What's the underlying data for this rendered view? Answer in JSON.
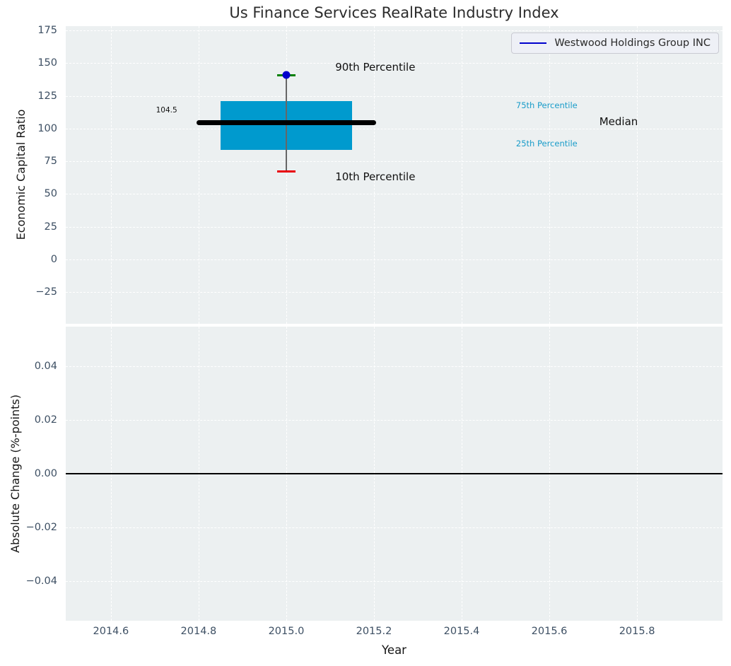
{
  "chart_data": [
    {
      "type": "box",
      "title": "Us Finance Services RealRate Industry Index",
      "xlabel": "",
      "ylabel": "Economic Capital Ratio",
      "xlim": [
        2014.497,
        2015.995
      ],
      "ylim": [
        -49.2,
        178.3
      ],
      "xticks": [
        2014.6,
        2014.8,
        2015.0,
        2015.2,
        2015.4,
        2015.6,
        2015.8
      ],
      "yticks": [
        175,
        150,
        125,
        100,
        75,
        50,
        25,
        0,
        -25
      ],
      "tick_decimals": {
        "x": 1,
        "y": 0
      },
      "grid": true,
      "axes_bg": "#ecf0f1",
      "grid_color": "#ffffff",
      "legend": {
        "position": "upper right",
        "entries": [
          {
            "label": "Westwood Holdings Group INC",
            "color": "#0000cc",
            "style": "line"
          }
        ]
      },
      "box": {
        "x": 2015.0,
        "median": 104.5,
        "q1": 83.5,
        "q3": 121,
        "p10": 67.5,
        "p90": 141,
        "company_marker_value": 141,
        "box_x_range": [
          2014.85,
          2015.15
        ],
        "median_x_range": [
          2014.795,
          2015.205
        ],
        "cap_half_width": 0.021,
        "colors": {
          "box": "#009ace",
          "median": "#000000",
          "whisker": "#666666",
          "p90_cap": "#008000",
          "p10_cap": "#e8000b",
          "marker": "#0000cc"
        }
      },
      "annotations": [
        {
          "text": "104.5",
          "x": 2014.727,
          "y": 114,
          "size": "tiny",
          "color": "#111111"
        },
        {
          "text": "90th Percentile",
          "x": 2015.203,
          "y": 147,
          "size": "large",
          "color": "#111111"
        },
        {
          "text": "75th Percentile",
          "x": 2015.594,
          "y": 118,
          "size": "small",
          "color": "#1a9cc9"
        },
        {
          "text": "Median",
          "x": 2015.758,
          "y": 105.5,
          "size": "large",
          "color": "#111111"
        },
        {
          "text": "25th Percentile",
          "x": 2015.594,
          "y": 88.5,
          "size": "small",
          "color": "#1a9cc9"
        },
        {
          "text": "10th Percentile",
          "x": 2015.203,
          "y": 63,
          "size": "large",
          "color": "#111111"
        }
      ]
    },
    {
      "type": "line",
      "title": "",
      "xlabel": "Year",
      "ylabel": "Absolute Change (%-points)",
      "xlim": [
        2014.497,
        2015.995
      ],
      "ylim": [
        -0.0547,
        0.0547
      ],
      "xticks": [
        2014.6,
        2014.8,
        2015.0,
        2015.2,
        2015.4,
        2015.6,
        2015.8
      ],
      "yticks": [
        0.04,
        0.02,
        0.0,
        -0.02,
        -0.04
      ],
      "tick_decimals": {
        "x": 1,
        "y": 2
      },
      "grid": true,
      "axes_bg": "#ecf0f1",
      "grid_color": "#ffffff",
      "zero_line": {
        "value": 0.0,
        "color": "#000000"
      }
    }
  ],
  "colors": {
    "figure_bg": "#ffffff",
    "axes_bg": "#ecf0f1",
    "tick_label": "#3d4f63",
    "title": "#2b2b2b"
  }
}
